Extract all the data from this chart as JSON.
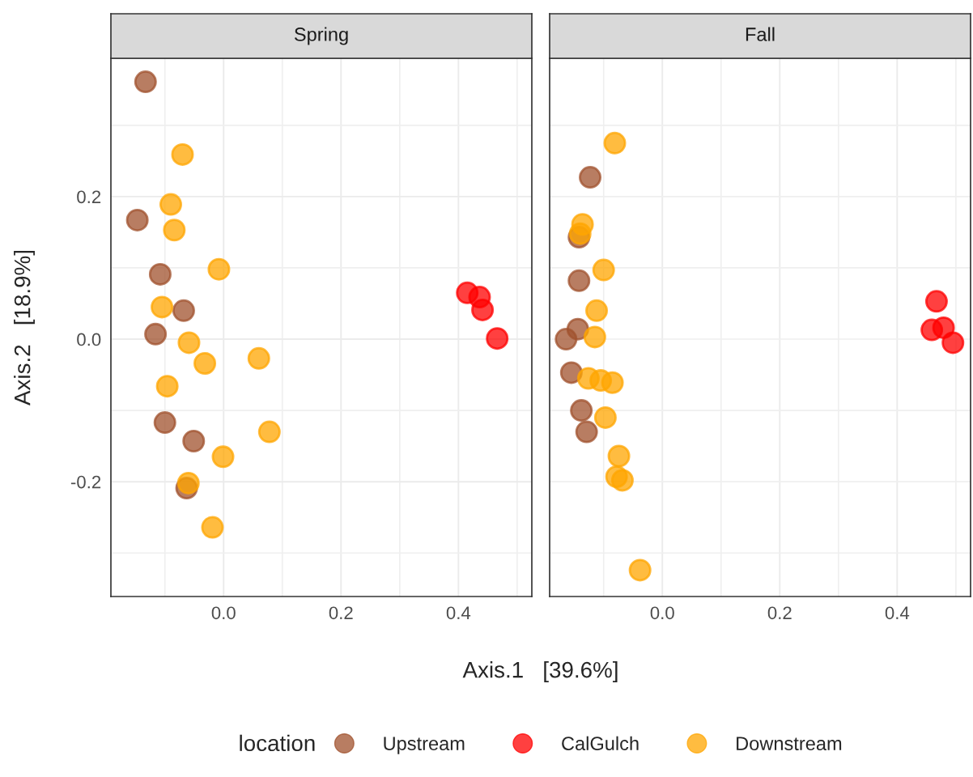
{
  "chart_data": [
    {
      "type": "scatter",
      "title": "Spring",
      "xlabel": "Axis.1   [39.6%]",
      "ylabel": "Axis.2   [18.9%]",
      "legend_title": "location",
      "legend": "bottom",
      "marker": "circle",
      "grid": true,
      "xlim": [
        -0.192,
        0.525
      ],
      "ylim": [
        -0.361,
        0.394
      ],
      "xticks": [
        {
          "value": -0.1,
          "label": null
        },
        {
          "value": 0.0,
          "label": "0.0"
        },
        {
          "value": 0.1,
          "label": null
        },
        {
          "value": 0.2,
          "label": "0.2"
        },
        {
          "value": 0.3,
          "label": null
        },
        {
          "value": 0.4,
          "label": "0.4"
        },
        {
          "value": 0.5,
          "label": null
        }
      ],
      "yticks": [
        {
          "value": -0.3,
          "label": null
        },
        {
          "value": -0.2,
          "label": "-0.2"
        },
        {
          "value": -0.1,
          "label": null
        },
        {
          "value": 0.0,
          "label": "0.0"
        },
        {
          "value": 0.1,
          "label": null
        },
        {
          "value": 0.2,
          "label": "0.2"
        },
        {
          "value": 0.3,
          "label": null
        }
      ],
      "series": [
        {
          "name": "Upstream",
          "color": "#a0522d",
          "x": [
            -0.133,
            -0.147,
            -0.108,
            -0.068,
            -0.116,
            -0.1,
            -0.051,
            -0.063
          ],
          "values": [
            0.361,
            0.167,
            0.091,
            0.04,
            0.007,
            -0.117,
            -0.143,
            -0.209
          ]
        },
        {
          "name": "CalGulch",
          "color": "#ff0000",
          "x": [
            0.415,
            0.436,
            0.441,
            0.466
          ],
          "values": [
            0.065,
            0.059,
            0.041,
            0.001
          ]
        },
        {
          "name": "Downstream",
          "color": "#ffa500",
          "x": [
            -0.07,
            -0.09,
            -0.084,
            -0.008,
            -0.105,
            -0.059,
            -0.032,
            0.06,
            -0.096,
            0.078,
            -0.001,
            -0.06,
            -0.019
          ],
          "values": [
            0.259,
            0.189,
            0.153,
            0.098,
            0.045,
            -0.005,
            -0.034,
            -0.027,
            -0.066,
            -0.13,
            -0.165,
            -0.202,
            -0.264
          ]
        }
      ]
    },
    {
      "type": "scatter",
      "title": "Fall",
      "marker": "circle",
      "grid": true,
      "tick_labels": "x",
      "xlim": [
        -0.192,
        0.525
      ],
      "ylim": [
        -0.361,
        0.394
      ],
      "xticks": [
        {
          "value": -0.1,
          "label": null
        },
        {
          "value": 0.0,
          "label": "0.0"
        },
        {
          "value": 0.1,
          "label": null
        },
        {
          "value": 0.2,
          "label": "0.2"
        },
        {
          "value": 0.3,
          "label": null
        },
        {
          "value": 0.4,
          "label": "0.4"
        },
        {
          "value": 0.5,
          "label": null
        }
      ],
      "yticks": [
        {
          "value": -0.3,
          "label": null
        },
        {
          "value": -0.2,
          "label": null
        },
        {
          "value": -0.1,
          "label": null
        },
        {
          "value": 0.0,
          "label": null
        },
        {
          "value": 0.1,
          "label": null
        },
        {
          "value": 0.2,
          "label": null
        },
        {
          "value": 0.3,
          "label": null
        }
      ],
      "series": [
        {
          "color": "#a0522d",
          "x": [
            -0.123,
            -0.142,
            -0.142,
            -0.144,
            -0.164,
            -0.155,
            -0.138,
            -0.129
          ],
          "values": [
            0.227,
            0.143,
            0.082,
            0.014,
            0.0,
            -0.047,
            -0.1,
            -0.13
          ]
        },
        {
          "color": "#ff0000",
          "x": [
            0.467,
            0.459,
            0.479,
            0.495
          ],
          "values": [
            0.053,
            0.013,
            0.016,
            -0.005
          ]
        },
        {
          "color": "#ffa500",
          "x": [
            -0.081,
            -0.136,
            -0.14,
            -0.1,
            -0.112,
            -0.115,
            -0.126,
            -0.105,
            -0.085,
            -0.097,
            -0.074,
            -0.078,
            -0.068,
            -0.038
          ],
          "values": [
            0.275,
            0.161,
            0.148,
            0.097,
            0.04,
            0.003,
            -0.055,
            -0.058,
            -0.061,
            -0.11,
            -0.164,
            -0.193,
            -0.198,
            -0.324
          ]
        }
      ]
    }
  ]
}
